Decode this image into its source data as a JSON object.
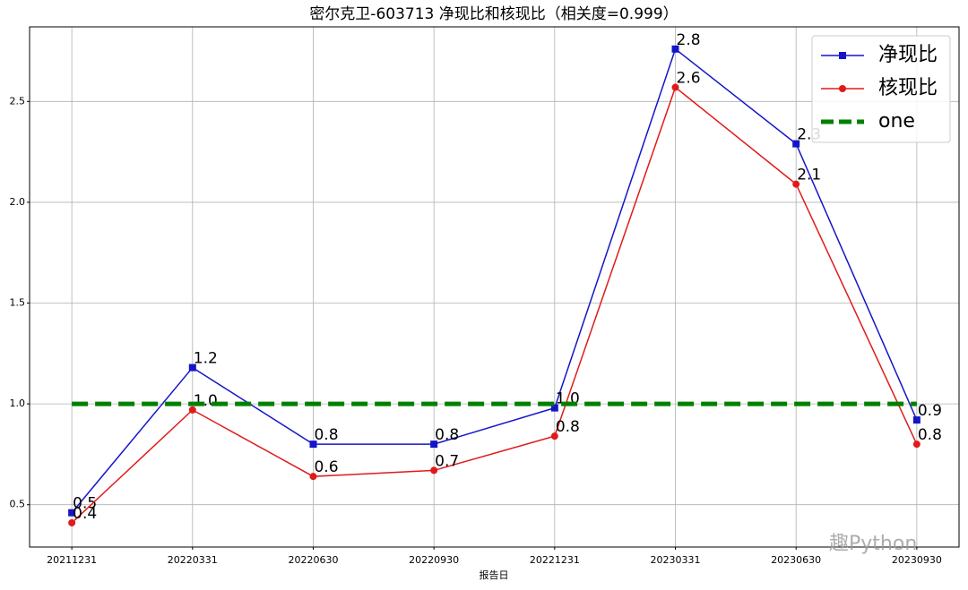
{
  "chart_data": {
    "type": "line",
    "title": "密尔克卫-603713 净现比和核现比（相关度=0.999）",
    "x_label": "报告日",
    "categories": [
      "20211231",
      "20220331",
      "20220630",
      "20220930",
      "20221231",
      "20230331",
      "20230630",
      "20230930"
    ],
    "series": [
      {
        "name": "净现比",
        "color": "#1515c8",
        "marker": "square",
        "values": [
          0.46,
          1.18,
          0.8,
          0.8,
          0.98,
          2.76,
          2.29,
          0.92
        ],
        "value_labels": [
          "0.5",
          "1.2",
          "0.8",
          "0.8",
          "1.0",
          "2.8",
          "2.3",
          "0.9"
        ]
      },
      {
        "name": "核现比",
        "color": "#e01a1a",
        "marker": "circle",
        "values": [
          0.41,
          0.97,
          0.64,
          0.67,
          0.84,
          2.57,
          2.09,
          0.8
        ],
        "value_labels": [
          "0.4",
          "1.0",
          "0.6",
          "0.7",
          "0.8",
          "2.6",
          "2.1",
          "0.8"
        ]
      },
      {
        "name": "one",
        "color": "#008000",
        "dashed": true,
        "values": [
          1,
          1,
          1,
          1,
          1,
          1,
          1,
          1
        ]
      }
    ],
    "ylim": [
      0.29,
      2.87
    ],
    "yticks": [
      0.5,
      {
        "value": 1,
        "label": "1.0"
      },
      1.5,
      {
        "value": 2,
        "label": "2.0"
      },
      2.5
    ],
    "grid": true,
    "legend": "upper right"
  },
  "watermark": "趣Python"
}
